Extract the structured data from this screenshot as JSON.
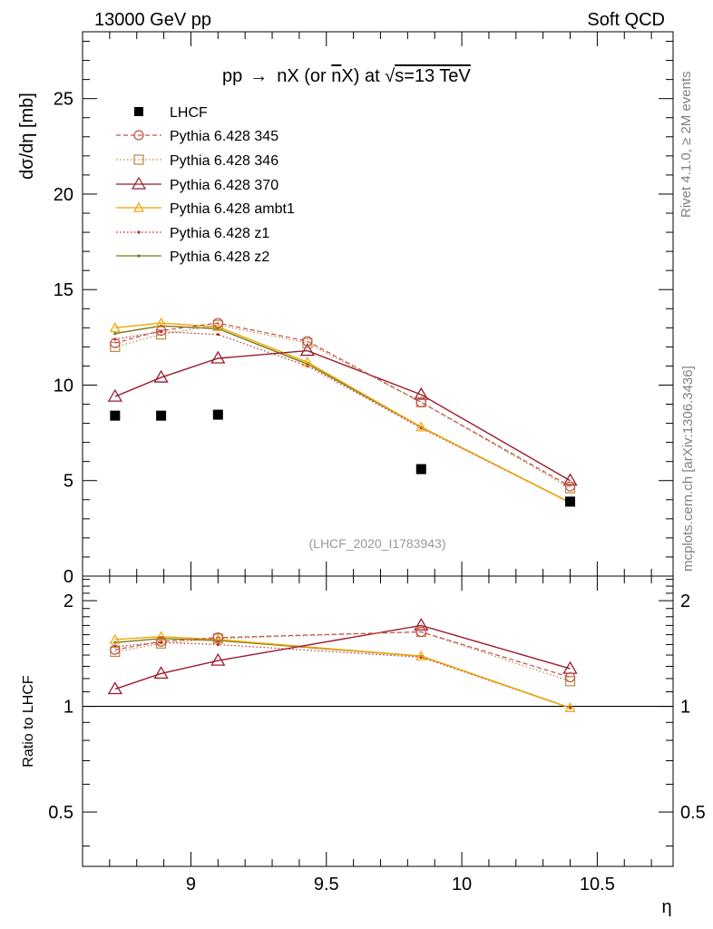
{
  "header": {
    "left": "13000 GeV pp",
    "right": "Soft QCD"
  },
  "side_labels": {
    "rivet": "Rivet 4.1.0, ≥ 2M events",
    "mcplots": "mcplots.cern.ch [arXiv:1306.3436]"
  },
  "colors": {
    "lhcf": "#000000",
    "p345": "#c0504d",
    "p346": "#b88a3c",
    "p370": "#9b1b30",
    "ambt1": "#f0a500",
    "z1": "#c0202a",
    "z2": "#7a7a10"
  },
  "chart_data": [
    {
      "type": "line",
      "panel": "main",
      "title": "pp → nX (or n̄X) at √s=13 TeV",
      "title_parts": {
        "pre": "pp",
        "arrow": "→",
        "mid": "nX (or ",
        "nbar": "n",
        "post": "X) at ",
        "sqrt": "√",
        "s_eq": "s=13 TeV"
      },
      "xlabel": "η",
      "ylabel": "dσ/dη [mb]",
      "xlim": [
        8.6,
        10.78
      ],
      "ylim": [
        0,
        28.5
      ],
      "yticks": [
        0,
        5,
        10,
        15,
        20,
        25
      ],
      "ytick_labels": [
        "0",
        "5",
        "10",
        "15",
        "20",
        "25"
      ],
      "watermark": "(LHCF_2020_I1783943)",
      "legend_position": "top-left",
      "x": [
        8.72,
        8.89,
        9.1,
        9.43,
        9.85,
        10.4
      ],
      "series": [
        {
          "name": "LHCF",
          "style": "data",
          "values": [
            8.4,
            8.4,
            8.45,
            null,
            5.6,
            3.9
          ]
        },
        {
          "name": "Pythia 6.428 345",
          "style": "dashed-circle",
          "values": [
            12.2,
            12.85,
            13.25,
            12.3,
            9.1,
            4.7
          ]
        },
        {
          "name": "Pythia 6.428 346",
          "style": "dotted-square",
          "values": [
            12.0,
            12.65,
            13.15,
            12.2,
            9.1,
            4.6
          ]
        },
        {
          "name": "Pythia 6.428 370",
          "style": "solid-triangle",
          "values": [
            9.4,
            10.4,
            11.4,
            11.8,
            9.5,
            5.0
          ]
        },
        {
          "name": "Pythia 6.428 ambt1",
          "style": "solid-triangle-small",
          "values": [
            13.0,
            13.25,
            13.05,
            11.2,
            7.8,
            3.85
          ]
        },
        {
          "name": "Pythia 6.428 z1",
          "style": "dotted-dot",
          "values": [
            12.4,
            12.8,
            12.65,
            11.0,
            7.75,
            3.85
          ]
        },
        {
          "name": "Pythia 6.428 z2",
          "style": "solid-dot",
          "values": [
            12.7,
            13.1,
            12.95,
            11.1,
            7.8,
            3.85
          ]
        }
      ]
    },
    {
      "type": "line",
      "panel": "ratio",
      "xlabel": "η",
      "ylabel": "Ratio to LHCF",
      "xlim": [
        8.6,
        10.78
      ],
      "ylim": [
        0.35,
        2.35
      ],
      "yticks": [
        0.5,
        1,
        2
      ],
      "ytick_labels": [
        "0.5",
        "1",
        "2"
      ],
      "xticks": [
        9,
        9.5,
        10,
        10.5
      ],
      "xtick_labels": [
        "9",
        "9.5",
        "10",
        "10.5"
      ],
      "reference": 1,
      "x": [
        8.72,
        8.89,
        9.1,
        9.85,
        10.4
      ],
      "series": [
        {
          "name": "Pythia 6.428 345",
          "values": [
            1.45,
            1.53,
            1.57,
            1.63,
            1.21
          ]
        },
        {
          "name": "Pythia 6.428 346",
          "values": [
            1.43,
            1.51,
            1.56,
            1.63,
            1.18
          ]
        },
        {
          "name": "Pythia 6.428 370",
          "values": [
            1.12,
            1.24,
            1.35,
            1.7,
            1.28
          ]
        },
        {
          "name": "Pythia 6.428 ambt1",
          "values": [
            1.55,
            1.58,
            1.55,
            1.39,
            0.99
          ]
        },
        {
          "name": "Pythia 6.428 z1",
          "values": [
            1.48,
            1.52,
            1.5,
            1.38,
            0.99
          ]
        },
        {
          "name": "Pythia 6.428 z2",
          "values": [
            1.52,
            1.56,
            1.54,
            1.39,
            0.99
          ]
        }
      ]
    }
  ]
}
